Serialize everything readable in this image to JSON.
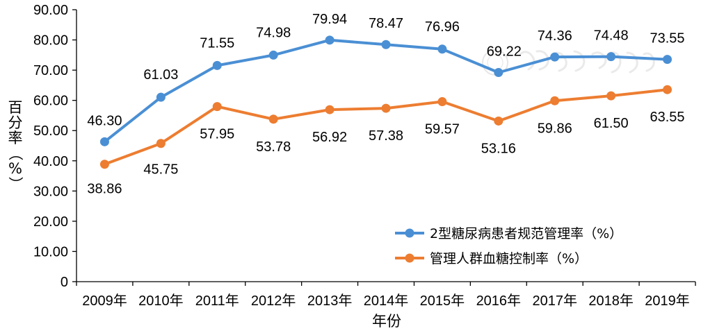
{
  "chart_data": {
    "type": "line",
    "title": "",
    "xlabel": "年份",
    "ylabel": "百分率（%）",
    "ylim": [
      0,
      90
    ],
    "y_ticks": [
      "0",
      "10.00",
      "20.00",
      "30.00",
      "40.00",
      "50.00",
      "60.00",
      "70.00",
      "80.00",
      "90.00"
    ],
    "categories": [
      "2009年",
      "2010年",
      "2011年",
      "2012年",
      "2013年",
      "2014年",
      "2015年",
      "2016年",
      "2017年",
      "2018年",
      "2019年"
    ],
    "grid": false,
    "legend_position": "bottom-right",
    "series": [
      {
        "name": "2型糖尿病患者规范管理率（%）",
        "color": "#4A8FD4",
        "values": [
          46.3,
          61.03,
          71.55,
          74.98,
          79.94,
          78.47,
          76.96,
          69.22,
          74.36,
          74.48,
          73.55
        ],
        "labels": [
          "46.30",
          "61.03",
          "71.55",
          "74.98",
          "79.94",
          "78.47",
          "76.96",
          "69.22",
          "74.36",
          "74.48",
          "73.55"
        ]
      },
      {
        "name": "管理人群血糖控制率（%）",
        "color": "#ED7D31",
        "values": [
          38.86,
          45.75,
          57.95,
          53.78,
          56.92,
          57.38,
          59.57,
          53.16,
          59.86,
          61.5,
          63.55
        ],
        "labels": [
          "38.86",
          "45.75",
          "57.95",
          "53.78",
          "56.92",
          "57.38",
          "59.57",
          "53.16",
          "59.86",
          "61.50",
          "63.55"
        ]
      }
    ]
  }
}
